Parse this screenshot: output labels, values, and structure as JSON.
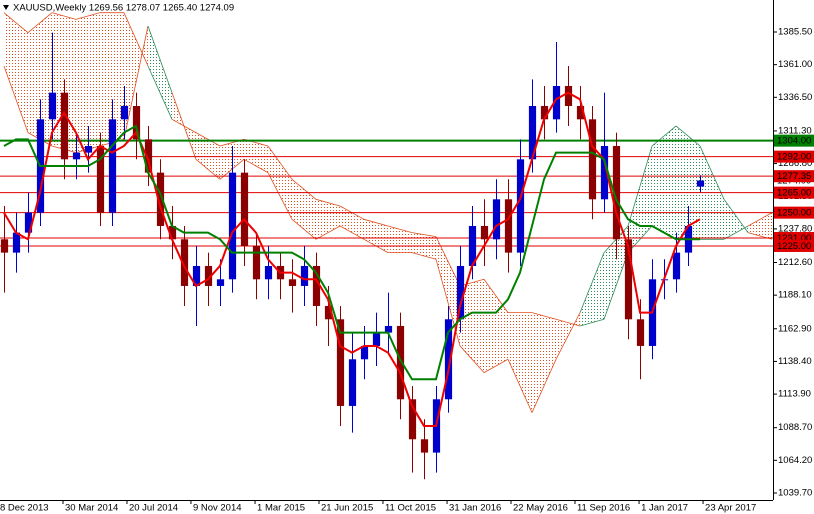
{
  "chart_data": {
    "type": "candlestick",
    "title": "XAUUSD,Weekly  1269.56 1278.07 1265.40 1274.09",
    "categories": [
      null,
      null,
      null,
      null,
      null,
      null,
      null,
      null,
      null,
      null,
      null,
      null,
      null,
      null,
      null,
      null,
      null,
      null,
      null,
      null,
      null,
      null,
      null,
      null,
      null,
      null,
      null,
      null,
      null,
      null,
      null,
      null,
      null,
      null,
      null,
      null,
      null,
      null,
      null,
      null,
      null,
      null,
      null,
      null,
      null,
      null,
      null,
      null,
      null,
      null,
      null,
      null,
      null,
      null,
      null,
      null,
      null,
      null,
      null
    ],
    "open": [
      1230,
      1220,
      1235,
      1250,
      1320,
      1340,
      1290,
      1295,
      1300,
      1250,
      1320,
      1330,
      1305,
      1280,
      1240,
      1230,
      1195,
      1210,
      1195,
      1200,
      1280,
      1225,
      1200,
      1210,
      1200,
      1195,
      1210,
      1180,
      1170,
      1105,
      1140,
      1150,
      1160,
      1165,
      1110,
      1080,
      1070,
      1110,
      1170,
      1210,
      1240,
      1230,
      1260,
      1220,
      1290,
      1330,
      1320,
      1345,
      1330,
      1320,
      1260,
      1300,
      1230,
      1170,
      1150,
      1200,
      1200,
      1220,
      1269.56
    ],
    "high": [
      1255,
      1250,
      1265,
      1335,
      1385,
      1350,
      1310,
      1315,
      1310,
      1335,
      1345,
      1340,
      1315,
      1290,
      1255,
      1240,
      1225,
      1220,
      1215,
      1300,
      1290,
      1235,
      1225,
      1220,
      1215,
      1225,
      1220,
      1195,
      1180,
      1160,
      1165,
      1175,
      1190,
      1175,
      1120,
      1095,
      1120,
      1180,
      1225,
      1255,
      1260,
      1275,
      1275,
      1305,
      1350,
      1345,
      1378,
      1360,
      1345,
      1330,
      1340,
      1310,
      1240,
      1185,
      1215,
      1215,
      1235,
      1255,
      1278.07
    ],
    "low": [
      1190,
      1205,
      1220,
      1240,
      1305,
      1275,
      1275,
      1280,
      1240,
      1240,
      1305,
      1290,
      1270,
      1230,
      1215,
      1180,
      1165,
      1180,
      1180,
      1190,
      1210,
      1185,
      1185,
      1185,
      1175,
      1180,
      1165,
      1150,
      1090,
      1085,
      1125,
      1135,
      1145,
      1095,
      1055,
      1050,
      1055,
      1100,
      1160,
      1200,
      1210,
      1215,
      1205,
      1210,
      1280,
      1305,
      1310,
      1315,
      1305,
      1245,
      1250,
      1215,
      1155,
      1125,
      1140,
      1185,
      1190,
      1210,
      1265.4
    ],
    "close": [
      1220,
      1235,
      1250,
      1320,
      1340,
      1290,
      1295,
      1300,
      1250,
      1320,
      1330,
      1305,
      1280,
      1240,
      1230,
      1195,
      1210,
      1195,
      1200,
      1280,
      1225,
      1200,
      1210,
      1200,
      1195,
      1210,
      1180,
      1170,
      1105,
      1140,
      1150,
      1160,
      1165,
      1110,
      1080,
      1070,
      1110,
      1170,
      1210,
      1240,
      1230,
      1260,
      1220,
      1290,
      1330,
      1320,
      1345,
      1330,
      1320,
      1260,
      1300,
      1230,
      1170,
      1150,
      1200,
      1200,
      1220,
      1240,
      1274.09
    ],
    "up_color": "#0000cc",
    "down_color": "#8b0000",
    "indicator_lines": [
      {
        "color": "#ee0000",
        "values": [
          1250,
          1235,
          1230,
          1265,
          1310,
          1325,
          1310,
          1290,
          1300,
          1295,
          1300,
          1310,
          1290,
          1255,
          1230,
          1210,
          1195,
          1200,
          1210,
          1235,
          1245,
          1235,
          1215,
          1205,
          1205,
          1200,
          1200,
          1185,
          1150,
          1145,
          1150,
          1150,
          1145,
          1130,
          1105,
          1090,
          1090,
          1130,
          1180,
          1210,
          1225,
          1240,
          1245,
          1260,
          1290,
          1320,
          1335,
          1340,
          1335,
          1300,
          1290,
          1250,
          1225,
          1175,
          1175,
          1200,
          1225,
          1240,
          1245
        ]
      },
      {
        "color": "#008000",
        "values": [
          1300,
          1305,
          1305,
          1285,
          1285,
          1285,
          1285,
          1285,
          1290,
          1300,
          1310,
          1315,
          1280,
          1265,
          1240,
          1235,
          1235,
          1235,
          1230,
          1220,
          1220,
          1220,
          1220,
          1220,
          1220,
          1215,
          1205,
          1190,
          1160,
          1160,
          1160,
          1160,
          1160,
          1140,
          1125,
          1125,
          1125,
          1160,
          1170,
          1175,
          1175,
          1175,
          1185,
          1205,
          1240,
          1275,
          1295,
          1295,
          1295,
          1295,
          1290,
          1260,
          1245,
          1240,
          1240,
          1235,
          1230,
          1230,
          1230
        ]
      }
    ],
    "cloud": {
      "x": [
        0,
        2,
        4,
        6,
        8,
        10,
        12,
        14,
        16,
        18,
        20,
        22,
        24,
        26,
        28,
        30,
        32,
        34,
        36,
        38,
        40,
        42,
        44,
        46,
        48,
        50,
        52,
        54,
        56,
        58,
        60,
        62,
        64
      ],
      "span_a": [
        1360,
        1310,
        1300,
        1295,
        1300,
        1305,
        1390,
        1340,
        1290,
        1275,
        1290,
        1280,
        1245,
        1230,
        1240,
        1230,
        1220,
        1220,
        1215,
        1150,
        1130,
        1140,
        1100,
        1140,
        1175,
        1220,
        1240,
        1300,
        1315,
        1300,
        1260,
        1235,
        1230
      ],
      "span_b": [
        1400,
        1385,
        1400,
        1395,
        1400,
        1400,
        1360,
        1320,
        1310,
        1300,
        1305,
        1300,
        1275,
        1260,
        1255,
        1245,
        1240,
        1235,
        1232,
        1195,
        1200,
        1175,
        1175,
        1170,
        1165,
        1170,
        1220,
        1240,
        1230,
        1230,
        1230,
        1240,
        1250
      ],
      "bull_color": "#2e8b57",
      "bear_color": "#e0501e"
    },
    "xlim": [
      -0.33,
      64.08
    ],
    "ylim": [
      1034.45,
      1409.5
    ],
    "yticks": [
      {
        "value": 1385.5,
        "label": "1385.50"
      },
      {
        "value": 1361,
        "label": "1361.00"
      },
      {
        "value": 1336.5,
        "label": "1336.50"
      },
      {
        "value": 1311.3,
        "label": "1311.30"
      },
      {
        "value": 1286.8,
        "label": "1286.80"
      },
      {
        "value": 1262.3,
        "label": "1262.30"
      },
      {
        "value": 1237.8,
        "label": "1237.80"
      },
      {
        "value": 1212.6,
        "label": "1212.60"
      },
      {
        "value": 1188.1,
        "label": "1188.10"
      },
      {
        "value": 1162.9,
        "label": "1162.90"
      },
      {
        "value": 1138.4,
        "label": "1138.40"
      },
      {
        "value": 1113.9,
        "label": "1113.90"
      },
      {
        "value": 1088.7,
        "label": "1088.70"
      },
      {
        "value": 1064.2,
        "label": "1064.20"
      },
      {
        "value": 1039.7,
        "label": "1039.70"
      }
    ],
    "xticks": [
      {
        "value": -0.5,
        "label": "8 Dec 2013"
      },
      {
        "value": 4.92,
        "label": "30 Mar 2014"
      },
      {
        "value": 10.25,
        "label": "20 Jul 2014"
      },
      {
        "value": 15.58,
        "label": "9 Nov 2014"
      },
      {
        "value": 20.92,
        "label": "1 Mar 2015"
      },
      {
        "value": 26.25,
        "label": "21 Jun 2015"
      },
      {
        "value": 31.58,
        "label": "11 Oct 2015"
      },
      {
        "value": 36.92,
        "label": "31 Jan 2016"
      },
      {
        "value": 42.25,
        "label": "22 May 2016"
      },
      {
        "value": 47.58,
        "label": "11 Sep 2016"
      },
      {
        "value": 52.92,
        "label": "1 Jan 2017"
      },
      {
        "value": 58.25,
        "label": "23 Apr 2017"
      }
    ],
    "last_price": {
      "value": 1274.09,
      "label": "1274.09"
    },
    "levels": [
      {
        "value": 1304,
        "label": "1304.00",
        "color": "#008000"
      },
      {
        "value": 1292,
        "label": "1292.00",
        "color": "#e00000"
      },
      {
        "value": 1277.35,
        "label": "1277.35",
        "color": "#e00000"
      },
      {
        "value": 1265,
        "label": "1265.00",
        "color": "#e00000"
      },
      {
        "value": 1250,
        "label": "1250.00",
        "color": "#e00000"
      },
      {
        "value": 1231,
        "label": "1231.00",
        "color": "#e00000"
      },
      {
        "value": 1225,
        "label": "1225.00",
        "color": "#e00000"
      }
    ]
  }
}
